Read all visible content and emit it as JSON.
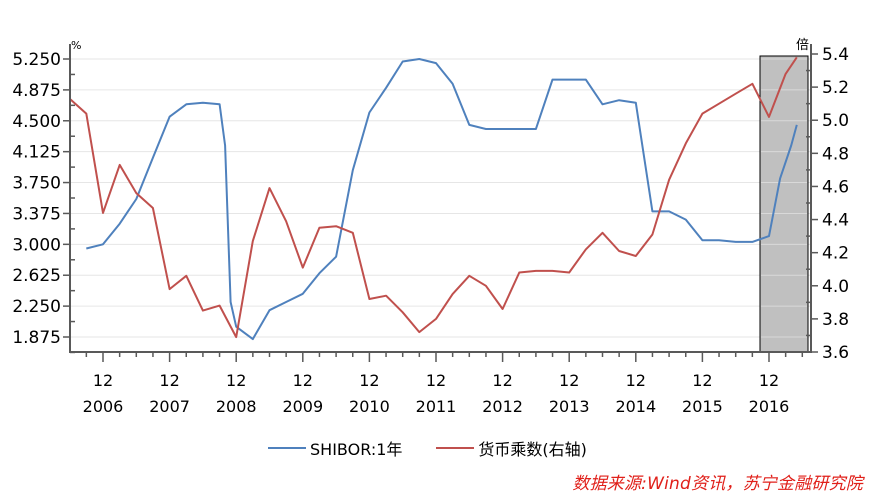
{
  "chart_data": {
    "type": "line",
    "title": "",
    "xlabel": "",
    "ylabel_left": "%",
    "ylabel_right": "倍",
    "left_axis": {
      "ticks": [
        "5.250",
        "4.875",
        "4.500",
        "4.125",
        "3.750",
        "3.375",
        "3.000",
        "2.625",
        "2.250",
        "1.875"
      ],
      "ylim": [
        1.75,
        5.375
      ]
    },
    "right_axis": {
      "ticks": [
        "5.4",
        "5.2",
        "5.0",
        "4.8",
        "4.6",
        "4.4",
        "4.2",
        "4.0",
        "3.8",
        "3.6"
      ],
      "ylim": [
        3.6,
        5.4
      ]
    },
    "x_ticks": [
      {
        "month": "12",
        "year": "2006"
      },
      {
        "month": "12",
        "year": "2007"
      },
      {
        "month": "12",
        "year": "2008"
      },
      {
        "month": "12",
        "year": "2009"
      },
      {
        "month": "12",
        "year": "2010"
      },
      {
        "month": "12",
        "year": "2011"
      },
      {
        "month": "12",
        "year": "2012"
      },
      {
        "month": "12",
        "year": "2013"
      },
      {
        "month": "12",
        "year": "2014"
      },
      {
        "month": "12",
        "year": "2015"
      },
      {
        "month": "12",
        "year": "2016"
      }
    ],
    "x_range": [
      "2006-06",
      "2017-05"
    ],
    "grid": "horizontal",
    "legend_position": "bottom",
    "highlight_region": {
      "from": "2016-11",
      "to": "2017-05",
      "color": "#c0c0c0"
    },
    "series": [
      {
        "name": "SHIBOR:1年",
        "axis": "left",
        "color": "#4f81bd",
        "x": [
          "2006-09",
          "2006-12",
          "2007-03",
          "2007-06",
          "2007-09",
          "2007-12",
          "2008-03",
          "2008-06",
          "2008-09",
          "2008-10",
          "2008-11",
          "2008-12",
          "2009-03",
          "2009-06",
          "2009-09",
          "2009-12",
          "2010-03",
          "2010-06",
          "2010-09",
          "2010-12",
          "2011-03",
          "2011-06",
          "2011-09",
          "2011-12",
          "2012-03",
          "2012-06",
          "2012-09",
          "2012-12",
          "2013-03",
          "2013-06",
          "2013-09",
          "2013-12",
          "2014-03",
          "2014-06",
          "2014-09",
          "2014-12",
          "2015-03",
          "2015-06",
          "2015-09",
          "2015-12",
          "2016-03",
          "2016-06",
          "2016-09",
          "2016-12",
          "2017-02",
          "2017-04",
          "2017-05"
        ],
        "values": [
          2.95,
          3.0,
          3.25,
          3.55,
          4.05,
          4.55,
          4.7,
          4.72,
          4.7,
          4.2,
          2.3,
          2.0,
          1.85,
          2.2,
          2.3,
          2.4,
          2.65,
          2.85,
          3.9,
          4.6,
          4.9,
          5.22,
          5.25,
          5.2,
          4.95,
          4.45,
          4.4,
          4.4,
          4.4,
          4.4,
          5.0,
          5.0,
          5.0,
          4.7,
          4.75,
          4.72,
          3.4,
          3.4,
          3.3,
          3.05,
          3.05,
          3.03,
          3.03,
          3.1,
          3.8,
          4.2,
          4.45
        ]
      },
      {
        "name": "货币乘数(右轴)",
        "axis": "right",
        "color": "#c0504d",
        "x": [
          "2006-06",
          "2006-09",
          "2006-12",
          "2007-03",
          "2007-06",
          "2007-09",
          "2007-12",
          "2008-03",
          "2008-06",
          "2008-09",
          "2008-12",
          "2009-03",
          "2009-06",
          "2009-09",
          "2009-12",
          "2010-03",
          "2010-06",
          "2010-09",
          "2010-12",
          "2011-03",
          "2011-06",
          "2011-09",
          "2011-12",
          "2012-03",
          "2012-06",
          "2012-09",
          "2012-12",
          "2013-03",
          "2013-06",
          "2013-09",
          "2013-12",
          "2014-03",
          "2014-06",
          "2014-09",
          "2014-12",
          "2015-03",
          "2015-06",
          "2015-09",
          "2015-12",
          "2016-03",
          "2016-06",
          "2016-09",
          "2016-12",
          "2017-03",
          "2017-05"
        ],
        "values": [
          5.13,
          5.04,
          4.44,
          4.73,
          4.56,
          4.47,
          3.98,
          4.06,
          3.85,
          3.88,
          3.69,
          4.27,
          4.59,
          4.39,
          4.11,
          4.35,
          4.36,
          4.32,
          3.92,
          3.94,
          3.84,
          3.72,
          3.8,
          3.95,
          4.06,
          4.0,
          3.86,
          4.08,
          4.09,
          4.09,
          4.08,
          4.22,
          4.32,
          4.21,
          4.18,
          4.31,
          4.64,
          4.86,
          5.04,
          5.1,
          5.16,
          5.22,
          5.02,
          5.28,
          5.38
        ]
      }
    ]
  },
  "axes": {
    "left_unit": "%",
    "right_unit": "倍",
    "left_ticks": [
      "5.250",
      "4.875",
      "4.500",
      "4.125",
      "3.750",
      "3.375",
      "3.000",
      "2.625",
      "2.250",
      "1.875"
    ],
    "right_ticks": [
      "5.4",
      "5.2",
      "5.0",
      "4.8",
      "4.6",
      "4.4",
      "4.2",
      "4.0",
      "3.8",
      "3.6"
    ],
    "x_months": [
      "12",
      "12",
      "12",
      "12",
      "12",
      "12",
      "12",
      "12",
      "12",
      "12",
      "12"
    ],
    "x_years": [
      "2006",
      "2007",
      "2008",
      "2009",
      "2010",
      "2011",
      "2012",
      "2013",
      "2014",
      "2015",
      "2016"
    ]
  },
  "legend": {
    "shibor": {
      "label": "SHIBOR:1年",
      "color": "#4f81bd"
    },
    "multiplier": {
      "label": "货币乘数(右轴)",
      "color": "#c0504d"
    }
  },
  "source": "数据来源:Wind资讯，苏宁金融研究院"
}
